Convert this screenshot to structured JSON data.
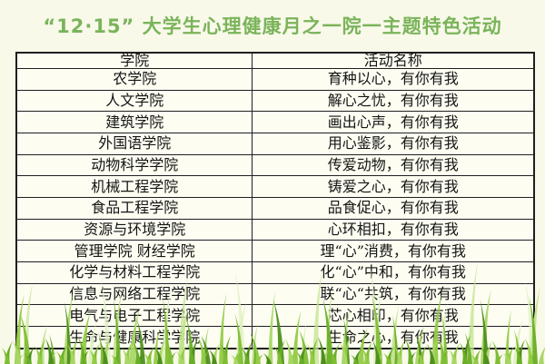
{
  "page": {
    "title": "“12·15” 大学生心理健康月之一院一主题特色活动"
  },
  "colors": {
    "background": "#f9f9ea",
    "title_green": "#7ab45a",
    "table_border": "#1f1f1f",
    "cell_background": "#fdfdf2",
    "grass_greens": [
      "#4e8f1d",
      "#69ae27",
      "#7fbe33",
      "#93cb45",
      "#a9d766",
      "#c3e38d",
      "#def0c0"
    ]
  },
  "table": {
    "headers": {
      "college": "学院",
      "activity": "活动名称"
    },
    "rows": [
      {
        "college": "农学院",
        "activity": "育种以心，有你有我"
      },
      {
        "college": "人文学院",
        "activity": "解心之忧，有你有我"
      },
      {
        "college": "建筑学院",
        "activity": "画出心声，有你有我"
      },
      {
        "college": "外国语学院",
        "activity": "用心鉴影，有你有我"
      },
      {
        "college": "动物科学学院",
        "activity": "传爱动物，有你有我"
      },
      {
        "college": "机械工程学院",
        "activity": "铸爱之心，有你有我"
      },
      {
        "college": "食品工程学院",
        "activity": "品食促心，有你有我"
      },
      {
        "college": "资源与环境学院",
        "activity": "心环相扣，有你有我"
      },
      {
        "college": "管理学院 财经学院",
        "activity": "理“心”消费，有你有我"
      },
      {
        "college": "化学与材料工程学院",
        "activity": "化“心”中和，有你有我"
      },
      {
        "college": "信息与网络工程学院",
        "activity": "联“心“共筑，有你有我"
      },
      {
        "college": "电气与电子工程学院",
        "activity": "芯心相印，有你有我"
      },
      {
        "college": "生命与健康科学学院",
        "activity": "生命之心，有你有我"
      }
    ]
  }
}
